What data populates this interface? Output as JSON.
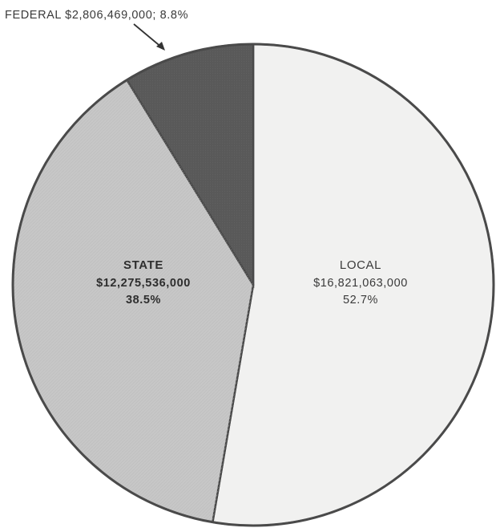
{
  "chart_data": {
    "type": "pie",
    "title": "",
    "slices": [
      {
        "key": "local",
        "name": "LOCAL",
        "amount": "$16,821,063,000",
        "value": 52.7,
        "percent": "52.7%",
        "color": "#f1f1f0"
      },
      {
        "key": "state",
        "name": "STATE",
        "amount": "$12,275,536,000",
        "value": 38.5,
        "percent": "38.5%",
        "color": "#c7c7c7"
      },
      {
        "key": "federal",
        "name": "FEDERAL",
        "amount": "$2,806,469,000",
        "value": 8.8,
        "percent": "8.8%",
        "color": "#595959"
      }
    ],
    "callout": {
      "slice": "federal",
      "text": "FEDERAL $2,806,469,000; 8.8%"
    },
    "outline_color": "#4a4a4a"
  }
}
